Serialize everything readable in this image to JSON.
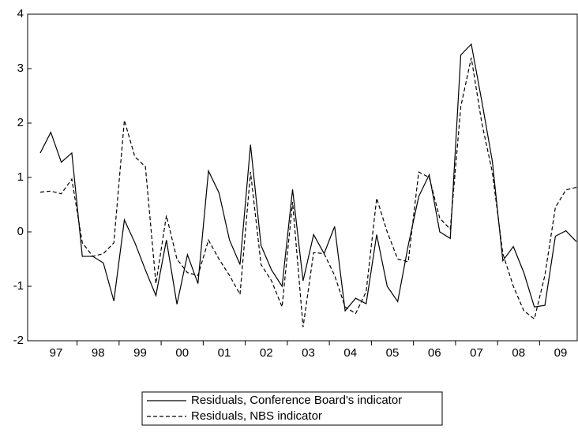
{
  "chart_data": {
    "type": "line",
    "categories": [
      "97",
      null,
      null,
      null,
      "98",
      null,
      null,
      null,
      "99",
      null,
      null,
      null,
      "00",
      null,
      null,
      null,
      "01",
      null,
      null,
      null,
      "02",
      null,
      null,
      null,
      "03",
      null,
      null,
      null,
      "04",
      null,
      null,
      null,
      "05",
      null,
      null,
      null,
      "06",
      null,
      null,
      null,
      "07",
      null,
      null,
      null,
      "08",
      null,
      null,
      null,
      "09",
      null,
      null,
      null
    ],
    "series": [
      {
        "name": "Residuals, Conference Board's indicator",
        "color": "#000000",
        "dash": "solid",
        "values": [
          1.45,
          1.83,
          1.28,
          1.45,
          -0.45,
          -0.45,
          -0.57,
          -1.27,
          0.22,
          -0.2,
          -0.7,
          -1.17,
          -0.15,
          -1.33,
          -0.42,
          -0.95,
          1.12,
          0.72,
          -0.15,
          -0.6,
          1.6,
          -0.25,
          -0.7,
          -1.0,
          0.78,
          -0.9,
          -0.05,
          -0.4,
          0.1,
          -1.45,
          -1.22,
          -1.32,
          -0.05,
          -1.0,
          -1.28,
          -0.25,
          0.65,
          1.05,
          0.0,
          -0.12,
          3.25,
          3.45,
          2.4,
          1.3,
          -0.53,
          -0.27,
          -0.75,
          -1.38,
          -1.35,
          -0.08,
          0.02,
          -0.18
        ]
      },
      {
        "name": "Residuals, NBS indicator",
        "color": "#000000",
        "dash": "dashed",
        "values": [
          0.73,
          0.75,
          0.7,
          0.97,
          -0.2,
          -0.45,
          -0.4,
          -0.2,
          2.05,
          1.38,
          1.2,
          -0.95,
          0.3,
          -0.5,
          -0.75,
          -0.8,
          -0.15,
          -0.5,
          -0.8,
          -1.15,
          1.1,
          -0.6,
          -0.9,
          -1.38,
          0.55,
          -1.75,
          -0.38,
          -0.4,
          -0.8,
          -1.38,
          -1.5,
          -1.1,
          0.62,
          0.0,
          -0.5,
          -0.55,
          1.1,
          1.0,
          0.25,
          0.05,
          2.3,
          3.2,
          2.0,
          1.1,
          -0.4,
          -1.0,
          -1.45,
          -1.6,
          -0.8,
          0.45,
          0.77,
          0.82
        ]
      }
    ],
    "ylim": [
      -2,
      4
    ],
    "yticks": [
      -2,
      -1,
      0,
      1,
      2,
      3,
      4
    ],
    "grid": false,
    "legend": "bottom"
  }
}
